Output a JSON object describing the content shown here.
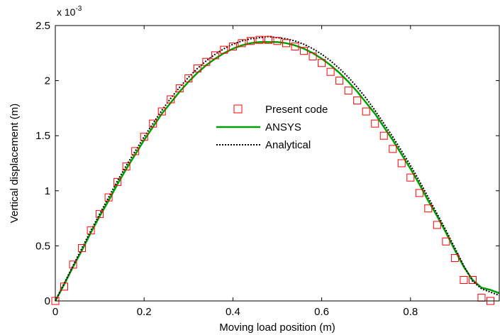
{
  "chart_data": {
    "type": "line",
    "title": "",
    "xlabel": "Moving load position (m)",
    "ylabel": "Vertical displacement (m)",
    "y_multiplier_base": "x 10",
    "y_multiplier_exp": "-3",
    "xlim": [
      0,
      1
    ],
    "ylim": [
      0,
      2.5
    ],
    "x_ticks": [
      0,
      0.2,
      0.4,
      0.6,
      0.8
    ],
    "x_tick_labels": [
      "0",
      "0.2",
      "0.4",
      "0.6",
      "0.8"
    ],
    "y_ticks": [
      0,
      0.5,
      1,
      1.5,
      2,
      2.5
    ],
    "y_tick_labels": [
      "0",
      "0.5",
      "1",
      "1.5",
      "2",
      "2.5"
    ],
    "grid": false,
    "legend_position": "center",
    "series": [
      {
        "name": "Present code",
        "style": "markers",
        "marker": "square",
        "color": "#ff0000",
        "x": [
          0,
          0.02,
          0.04,
          0.06,
          0.08,
          0.1,
          0.12,
          0.14,
          0.16,
          0.18,
          0.2,
          0.22,
          0.24,
          0.26,
          0.28,
          0.3,
          0.32,
          0.34,
          0.36,
          0.38,
          0.4,
          0.42,
          0.44,
          0.46,
          0.48,
          0.5,
          0.52,
          0.54,
          0.56,
          0.58,
          0.6,
          0.62,
          0.64,
          0.66,
          0.68,
          0.7,
          0.72,
          0.74,
          0.76,
          0.78,
          0.8,
          0.82,
          0.84,
          0.86,
          0.88,
          0.9,
          0.92,
          0.94,
          0.96,
          0.98
        ],
        "y": [
          0.0,
          0.13,
          0.33,
          0.48,
          0.64,
          0.79,
          0.94,
          1.08,
          1.22,
          1.36,
          1.49,
          1.61,
          1.72,
          1.83,
          1.93,
          2.02,
          2.11,
          2.17,
          2.23,
          2.28,
          2.31,
          2.34,
          2.36,
          2.37,
          2.37,
          2.36,
          2.34,
          2.31,
          2.27,
          2.22,
          2.16,
          2.08,
          2.0,
          1.91,
          1.82,
          1.72,
          1.61,
          1.5,
          1.38,
          1.25,
          1.12,
          0.98,
          0.84,
          0.69,
          0.54,
          0.39,
          0.19,
          0.19,
          0.03,
          0.0
        ]
      },
      {
        "name": "ANSYS",
        "style": "solid",
        "color": "#00a000",
        "x": [
          0,
          0.02,
          0.04,
          0.06,
          0.08,
          0.1,
          0.12,
          0.14,
          0.16,
          0.18,
          0.2,
          0.22,
          0.24,
          0.26,
          0.28,
          0.3,
          0.32,
          0.34,
          0.36,
          0.38,
          0.4,
          0.42,
          0.44,
          0.46,
          0.48,
          0.5,
          0.52,
          0.54,
          0.56,
          0.58,
          0.6,
          0.62,
          0.64,
          0.66,
          0.68,
          0.7,
          0.72,
          0.74,
          0.76,
          0.78,
          0.8,
          0.82,
          0.84,
          0.86,
          0.88,
          0.9,
          0.92,
          0.94,
          0.96,
          0.98,
          1.0
        ],
        "y": [
          0.0,
          0.15,
          0.31,
          0.46,
          0.62,
          0.77,
          0.91,
          1.06,
          1.2,
          1.33,
          1.46,
          1.58,
          1.7,
          1.8,
          1.9,
          1.99,
          2.07,
          2.14,
          2.2,
          2.25,
          2.29,
          2.32,
          2.34,
          2.35,
          2.35,
          2.35,
          2.34,
          2.32,
          2.29,
          2.25,
          2.2,
          2.14,
          2.07,
          1.99,
          1.9,
          1.8,
          1.7,
          1.58,
          1.46,
          1.33,
          1.2,
          1.06,
          0.91,
          0.77,
          0.62,
          0.46,
          0.31,
          0.19,
          0.12,
          0.1,
          0.07
        ]
      },
      {
        "name": "Analytical",
        "style": "dotted",
        "color": "#000000",
        "x": [
          0,
          0.02,
          0.04,
          0.06,
          0.08,
          0.1,
          0.12,
          0.14,
          0.16,
          0.18,
          0.2,
          0.22,
          0.24,
          0.26,
          0.28,
          0.3,
          0.32,
          0.34,
          0.36,
          0.38,
          0.4,
          0.42,
          0.44,
          0.46,
          0.48,
          0.5,
          0.52,
          0.54,
          0.56,
          0.58,
          0.6,
          0.62,
          0.64,
          0.66,
          0.68,
          0.7,
          0.72,
          0.74,
          0.76,
          0.78,
          0.8,
          0.82,
          0.84,
          0.86,
          0.88,
          0.9,
          0.92,
          0.94,
          0.96,
          0.98,
          1.0
        ],
        "y": [
          0.0,
          0.16,
          0.32,
          0.48,
          0.64,
          0.79,
          0.94,
          1.09,
          1.23,
          1.36,
          1.49,
          1.61,
          1.73,
          1.84,
          1.94,
          2.03,
          2.11,
          2.18,
          2.24,
          2.29,
          2.33,
          2.36,
          2.38,
          2.39,
          2.4,
          2.39,
          2.38,
          2.36,
          2.33,
          2.29,
          2.24,
          2.18,
          2.11,
          2.03,
          1.94,
          1.84,
          1.73,
          1.61,
          1.49,
          1.36,
          1.23,
          1.09,
          0.94,
          0.79,
          0.64,
          0.48,
          0.32,
          0.18,
          0.11,
          0.08,
          0.05
        ]
      }
    ]
  }
}
